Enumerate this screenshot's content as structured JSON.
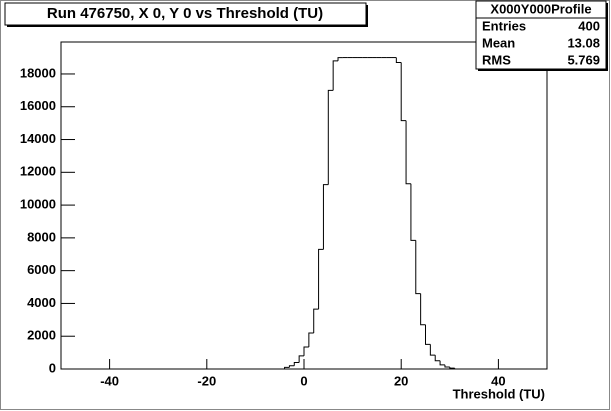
{
  "chart_data": {
    "type": "histogram",
    "title": "Run 476750, X 0, Y 0 vs Threshold (TU)",
    "x_label": "Threshold (TU)",
    "stats": {
      "name": "X000Y000Profile",
      "rows": [
        {
          "label": "Entries",
          "value": 400
        },
        {
          "label": "Mean",
          "value": 13.08
        },
        {
          "label": "RMS",
          "value": 5.769
        }
      ]
    },
    "bins": [
      -5,
      -4,
      -3,
      -2,
      -1,
      0,
      1,
      2,
      3,
      4,
      5,
      6,
      7,
      8,
      9,
      10,
      11,
      12,
      13,
      14,
      15,
      16,
      17,
      18,
      19,
      20,
      21,
      22,
      23,
      24,
      25,
      26,
      27,
      28,
      29,
      30,
      31
    ],
    "values": [
      0,
      100,
      200,
      400,
      800,
      1340,
      2200,
      3650,
      7300,
      11250,
      17000,
      18800,
      19000,
      19000,
      19000,
      19000,
      19000,
      19000,
      19000,
      19000,
      19000,
      19000,
      19000,
      19000,
      18700,
      15150,
      11300,
      7850,
      4600,
      2700,
      1500,
      850,
      500,
      250,
      120,
      50
    ],
    "color": "#000000",
    "xlim": [
      -50,
      50
    ],
    "xticks": [
      -40,
      -20,
      0,
      20,
      40
    ],
    "ylim": [
      0,
      19950
    ],
    "yticks": [
      0,
      2000,
      4000,
      6000,
      8000,
      10000,
      12000,
      14000,
      16000,
      18000
    ]
  }
}
